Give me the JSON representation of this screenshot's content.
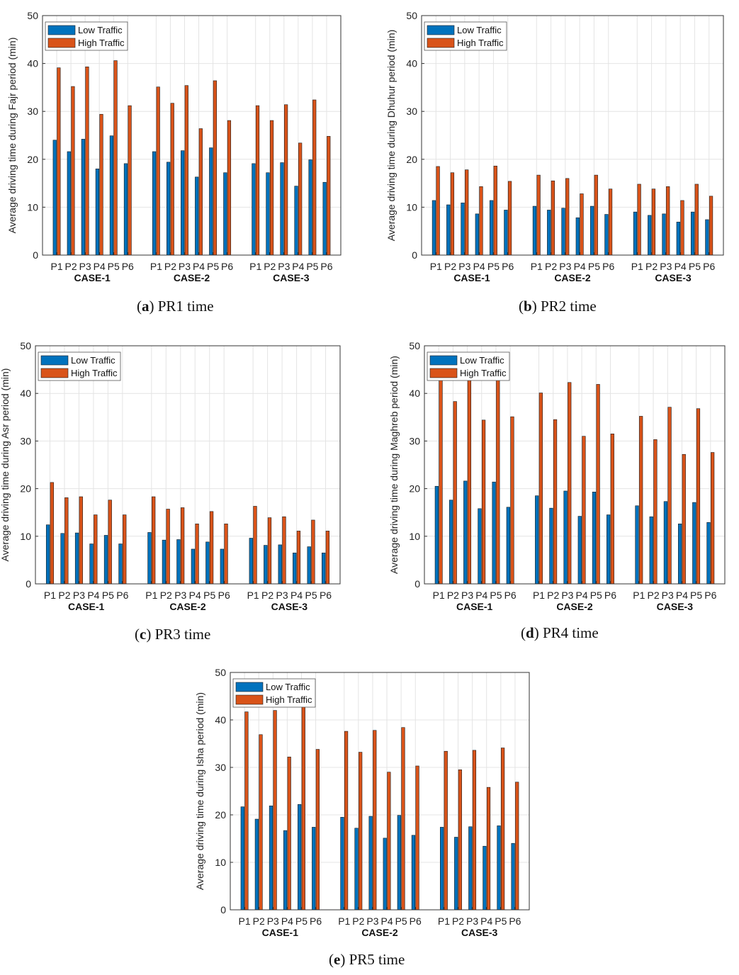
{
  "colors": {
    "low": "#0072BD",
    "high": "#D95319",
    "grid": "#e4e4e4",
    "axis": "#333333"
  },
  "chart_data": [
    {
      "id": "a",
      "type": "bar",
      "title": "",
      "ylabel": "Average driving time during Fajr period (min)",
      "xlabel": "",
      "ylim": [
        0,
        50
      ],
      "yticks": [
        "0",
        "10",
        "20",
        "30",
        "40",
        "50"
      ],
      "groups": [
        "CASE-1",
        "CASE-2",
        "CASE-3"
      ],
      "categories": [
        "P1",
        "P2",
        "P3",
        "P4",
        "P5",
        "P6"
      ],
      "legend": [
        "Low Traffic",
        "High Traffic"
      ],
      "series": [
        {
          "name": "Low Traffic",
          "values": [
            [
              24.0,
              21.6,
              24.2,
              18.0,
              24.9,
              19.1
            ],
            [
              21.6,
              19.4,
              21.8,
              16.3,
              22.4,
              17.2
            ],
            [
              19.1,
              17.2,
              19.3,
              14.4,
              19.9,
              15.2
            ]
          ]
        },
        {
          "name": "High Traffic",
          "values": [
            [
              39.1,
              35.2,
              39.3,
              29.4,
              40.6,
              31.2
            ],
            [
              35.1,
              31.7,
              35.4,
              26.4,
              36.4,
              28.1
            ],
            [
              31.2,
              28.1,
              31.4,
              23.4,
              32.4,
              24.8
            ]
          ]
        }
      ],
      "caption": {
        "label": "a",
        "text": "PR1 time"
      }
    },
    {
      "id": "b",
      "type": "bar",
      "title": "",
      "ylabel": "Average driving time during Dhuhur period (min)",
      "xlabel": "",
      "ylim": [
        0,
        50
      ],
      "yticks": [
        "0",
        "10",
        "20",
        "30",
        "40",
        "50"
      ],
      "groups": [
        "CASE-1",
        "CASE-2",
        "CASE-3"
      ],
      "categories": [
        "P1",
        "P2",
        "P3",
        "P4",
        "P5",
        "P6"
      ],
      "legend": [
        "Low Traffic",
        "High Traffic"
      ],
      "series": [
        {
          "name": "Low Traffic",
          "values": [
            [
              11.4,
              10.5,
              10.9,
              8.6,
              11.4,
              9.4
            ],
            [
              10.2,
              9.4,
              9.8,
              7.8,
              10.2,
              8.5
            ],
            [
              9.0,
              8.3,
              8.6,
              6.9,
              9.0,
              7.4
            ]
          ]
        },
        {
          "name": "High Traffic",
          "values": [
            [
              18.5,
              17.2,
              17.8,
              14.3,
              18.6,
              15.4
            ],
            [
              16.7,
              15.5,
              16.0,
              12.8,
              16.7,
              13.8
            ],
            [
              14.8,
              13.8,
              14.3,
              11.4,
              14.8,
              12.3
            ]
          ]
        }
      ],
      "caption": {
        "label": "b",
        "text": "PR2 time"
      }
    },
    {
      "id": "c",
      "type": "bar",
      "title": "",
      "ylabel": "Average driving time during Asr period (min)",
      "xlabel": "",
      "ylim": [
        0,
        50
      ],
      "yticks": [
        "0",
        "10",
        "20",
        "30",
        "40",
        "50"
      ],
      "groups": [
        "CASE-1",
        "CASE-2",
        "CASE-3"
      ],
      "categories": [
        "P1",
        "P2",
        "P3",
        "P4",
        "P5",
        "P6"
      ],
      "legend": [
        "Low Traffic",
        "High Traffic"
      ],
      "series": [
        {
          "name": "Low Traffic",
          "values": [
            [
              12.4,
              10.6,
              10.7,
              8.4,
              10.2,
              8.4
            ],
            [
              10.8,
              9.2,
              9.3,
              7.3,
              8.8,
              7.3
            ],
            [
              9.6,
              8.1,
              8.2,
              6.5,
              7.8,
              6.5
            ]
          ]
        },
        {
          "name": "High Traffic",
          "values": [
            [
              21.3,
              18.1,
              18.3,
              14.5,
              17.6,
              14.5
            ],
            [
              18.3,
              15.7,
              16.0,
              12.6,
              15.2,
              12.6
            ],
            [
              16.3,
              13.9,
              14.1,
              11.1,
              13.4,
              11.1
            ]
          ]
        }
      ],
      "caption": {
        "label": "c",
        "text": "PR3 time"
      }
    },
    {
      "id": "d",
      "type": "bar",
      "title": "",
      "ylabel": "Average driving time during Maghreb period (min)",
      "xlabel": "",
      "ylim": [
        0,
        50
      ],
      "yticks": [
        "0",
        "10",
        "20",
        "30",
        "40",
        "50"
      ],
      "groups": [
        "CASE-1",
        "CASE-2",
        "CASE-3"
      ],
      "categories": [
        "P1",
        "P2",
        "P3",
        "P4",
        "P5",
        "P6"
      ],
      "legend": [
        "Low Traffic",
        "High Traffic"
      ],
      "series": [
        {
          "name": "Low Traffic",
          "values": [
            [
              20.5,
              17.6,
              21.6,
              15.8,
              21.4,
              16.1
            ],
            [
              18.5,
              15.9,
              19.5,
              14.2,
              19.3,
              14.5
            ],
            [
              16.4,
              14.1,
              17.3,
              12.6,
              17.1,
              12.9
            ]
          ]
        },
        {
          "name": "High Traffic",
          "values": [
            [
              44.0,
              38.3,
              44.2,
              34.4,
              44.5,
              35.1
            ],
            [
              40.1,
              34.5,
              42.3,
              31.0,
              41.9,
              31.5
            ],
            [
              35.2,
              30.3,
              37.1,
              27.2,
              36.8,
              27.6
            ]
          ]
        }
      ],
      "caption": {
        "label": "d",
        "text": "PR4 time"
      }
    },
    {
      "id": "e",
      "type": "bar",
      "title": "",
      "ylabel": "Average driving time during Isha period (min)",
      "xlabel": "",
      "ylim": [
        0,
        50
      ],
      "yticks": [
        "0",
        "10",
        "20",
        "30",
        "40",
        "50"
      ],
      "groups": [
        "CASE-1",
        "CASE-2",
        "CASE-3"
      ],
      "categories": [
        "P1",
        "P2",
        "P3",
        "P4",
        "P5",
        "P6"
      ],
      "legend": [
        "Low Traffic",
        "High Traffic"
      ],
      "series": [
        {
          "name": "Low Traffic",
          "values": [
            [
              21.7,
              19.1,
              21.9,
              16.7,
              22.2,
              17.4
            ],
            [
              19.5,
              17.2,
              19.7,
              15.1,
              19.9,
              15.7
            ],
            [
              17.4,
              15.3,
              17.5,
              13.4,
              17.7,
              14.0
            ]
          ]
        },
        {
          "name": "High Traffic",
          "values": [
            [
              41.7,
              36.9,
              42.0,
              32.2,
              43.0,
              33.8
            ],
            [
              37.6,
              33.2,
              37.8,
              29.0,
              38.4,
              30.3
            ],
            [
              33.4,
              29.5,
              33.6,
              25.8,
              34.1,
              26.9
            ]
          ]
        }
      ],
      "caption": {
        "label": "e",
        "text": "PR5 time"
      }
    }
  ]
}
